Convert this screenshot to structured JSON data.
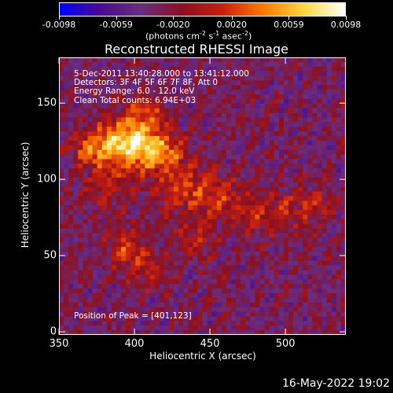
{
  "colorbar": {
    "ticks": [
      "-0.0098",
      "-0.0059",
      "-0.0020",
      "0.0020",
      "0.0059",
      "0.0098"
    ],
    "unit_prefix": "(photons cm",
    "unit_sup1": "-2",
    "unit_mid1": " s",
    "unit_sup2": "-1",
    "unit_mid2": " asec",
    "unit_sup3": "-2",
    "unit_suffix": ")"
  },
  "info": {
    "time_range": "5-Dec-2011 13:40:28.000 to 13:41:12.000",
    "detectors": "Detectors: 3F 4F 5F 6F 7F 8F, Att 0",
    "energy": "Energy Range: 6.0 - 12.0 keV",
    "algorithm": "Clean    Total counts: 6.94E+03",
    "peak": "Position of Peak = [401,123]"
  },
  "timestamp": "16-May-2022 19:02",
  "chart_data": {
    "type": "heatmap",
    "title": "Reconstructed RHESSI Image",
    "xlabel": "Heliocentric X (arcsec)",
    "ylabel": "Heliocentric Y (arcsec)",
    "xlim": [
      350,
      540
    ],
    "ylim": [
      -2,
      180
    ],
    "xticks": [
      "350",
      "400",
      "450",
      "500"
    ],
    "yticks": [
      "0",
      "50",
      "100",
      "150"
    ],
    "zlim": [
      -0.0098,
      0.0098
    ],
    "colormap": [
      "#0000ff",
      "#4a0b8c",
      "#6a2d80",
      "#8a1020",
      "#c82010",
      "#ff7a00",
      "#ffd840",
      "#ffffff"
    ],
    "peak_position": [
      401,
      123
    ],
    "sources": [
      {
        "x": 395,
        "y": 125,
        "sx": 14,
        "sy": 11,
        "amp": 0.0098
      },
      {
        "x": 415,
        "y": 118,
        "sx": 12,
        "sy": 9,
        "amp": 0.0068
      },
      {
        "x": 372,
        "y": 120,
        "sx": 10,
        "sy": 8,
        "amp": 0.0052
      },
      {
        "x": 408,
        "y": 145,
        "sx": 9,
        "sy": 7,
        "amp": 0.0045
      },
      {
        "x": 430,
        "y": 95,
        "sx": 12,
        "sy": 12,
        "amp": 0.0042
      },
      {
        "x": 455,
        "y": 90,
        "sx": 14,
        "sy": 10,
        "amp": 0.0038
      },
      {
        "x": 490,
        "y": 78,
        "sx": 18,
        "sy": 10,
        "amp": 0.0036
      },
      {
        "x": 520,
        "y": 85,
        "sx": 10,
        "sy": 8,
        "amp": 0.003
      },
      {
        "x": 395,
        "y": 55,
        "sx": 10,
        "sy": 10,
        "amp": 0.0044
      },
      {
        "x": 410,
        "y": 40,
        "sx": 8,
        "sy": 8,
        "amp": 0.0036
      },
      {
        "x": 382,
        "y": 95,
        "sx": 12,
        "sy": 10,
        "amp": 0.0034
      },
      {
        "x": 440,
        "y": 60,
        "sx": 10,
        "sy": 10,
        "amp": 0.0028
      }
    ]
  }
}
